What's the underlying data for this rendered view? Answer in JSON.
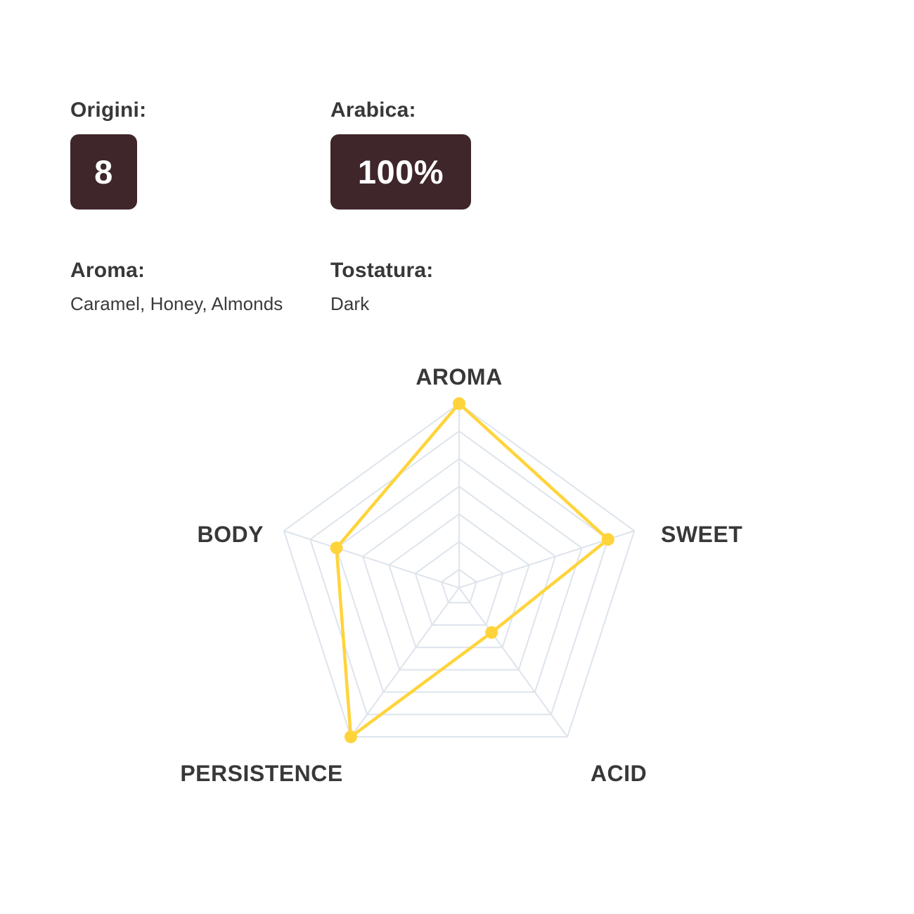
{
  "info": {
    "origini_label": "Origini:",
    "origini_value": "8",
    "arabica_label": "Arabica:",
    "arabica_value": "100%",
    "aroma_label": "Aroma:",
    "aroma_value": "Caramel, Honey, Almonds",
    "tostatura_label": "Tostatura:",
    "tostatura_value": "Dark"
  },
  "colors": {
    "badge_bg": "#3F262A",
    "badge_text": "#FFFFFF",
    "heading_text": "#383838",
    "body_text": "#3A3A3A",
    "radar_line": "#FFD43B",
    "radar_grid": "#DDE4EC"
  },
  "chart_data": {
    "type": "radar",
    "title": "",
    "categories": [
      "AROMA",
      "SWEET",
      "ACID",
      "PERSISTENCE",
      "BODY"
    ],
    "values": [
      10,
      8.5,
      3,
      10,
      7
    ],
    "scale_max": 10,
    "grid_ring_ratios": [
      0.1,
      0.25,
      0.4,
      0.55,
      0.7,
      0.85,
      1.0
    ],
    "grid": "pentagon-rings-with-spokes",
    "legend_position": "none"
  }
}
